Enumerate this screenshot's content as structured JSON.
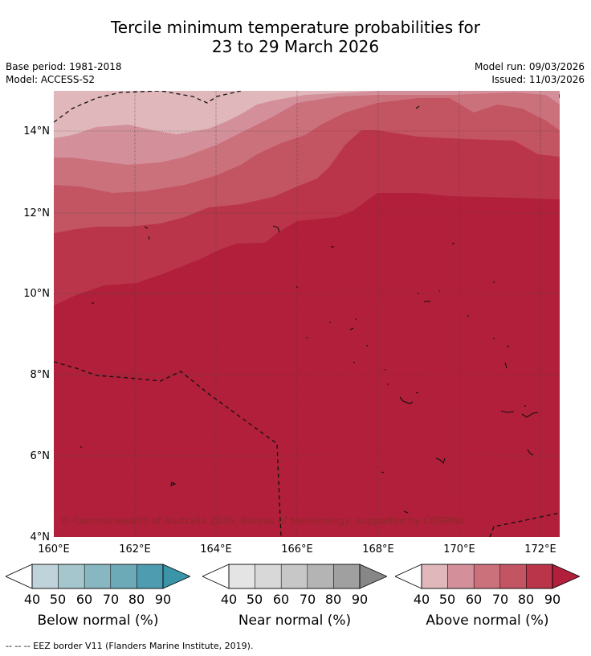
{
  "title": {
    "line1": "Tercile minimum temperature probabilities for",
    "line2": "23 to 29 March 2026"
  },
  "meta": {
    "base_period": "Base period: 1981-2018",
    "model": "Model: ACCESS-S2",
    "model_run": "Model run: 09/03/2026",
    "issued": "Issued: 11/03/2026"
  },
  "map": {
    "lon_labels": [
      "160°E",
      "162°E",
      "164°E",
      "166°E",
      "168°E",
      "170°E",
      "172°E"
    ],
    "lat_labels": [
      "14°N",
      "12°N",
      "10°N",
      "8°N",
      "6°N",
      "4°N"
    ],
    "copyright": "© Commonwealth of Australia 2026, Bureau of Meteorology, supported by COSPPac",
    "category_shown": "Above normal",
    "probability_bands": [
      {
        "range": "40-50",
        "color": "#e0b7bb"
      },
      {
        "range": "50-60",
        "color": "#d4909a"
      },
      {
        "range": "60-70",
        "color": "#cb717c"
      },
      {
        "range": "70-80",
        "color": "#c35461"
      },
      {
        "range": "80-90",
        "color": "#ba3549"
      },
      {
        "range": ">90",
        "color": "#b11f3a"
      }
    ]
  },
  "colorbars": [
    {
      "label": "Below normal (%)",
      "ticks": [
        "40",
        "50",
        "60",
        "70",
        "80",
        "90"
      ],
      "colors": [
        "#bfd4da",
        "#a5c6cc",
        "#88b6c1",
        "#6caab8",
        "#4e9caf",
        "#3a95a8"
      ]
    },
    {
      "label": "Near normal (%)",
      "ticks": [
        "40",
        "50",
        "60",
        "70",
        "80",
        "90"
      ],
      "colors": [
        "#e4e4e4",
        "#d8d8d8",
        "#c7c7c7",
        "#b4b4b4",
        "#a0a0a0",
        "#878787"
      ]
    },
    {
      "label": "Above normal (%)",
      "ticks": [
        "40",
        "50",
        "60",
        "70",
        "80",
        "90"
      ],
      "colors": [
        "#e0b7bb",
        "#d4909a",
        "#cb717c",
        "#c35461",
        "#ba3549",
        "#b11f3a"
      ]
    }
  ],
  "footer": "--  --  -- EEZ border V11 (Flanders Marine Institute, 2019)."
}
